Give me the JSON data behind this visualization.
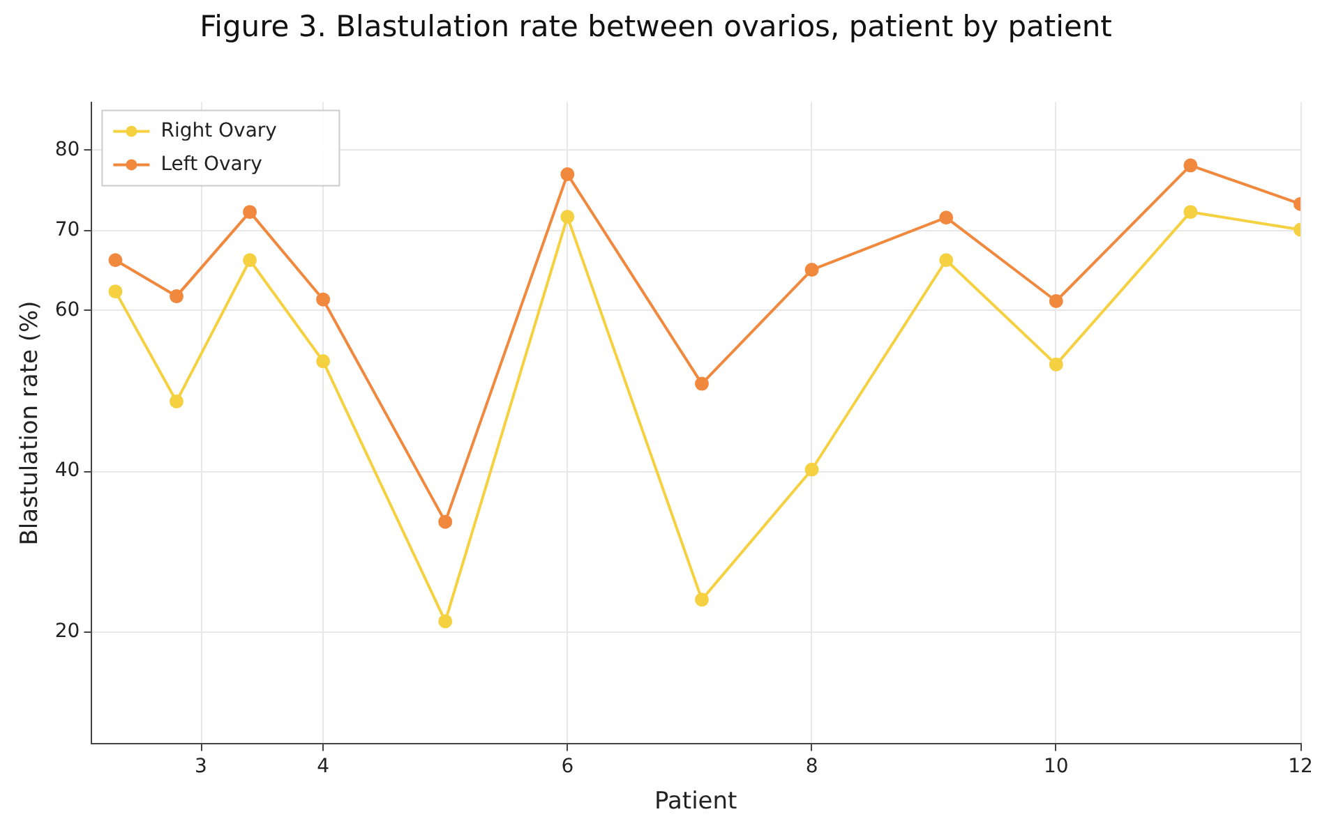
{
  "chart_data": {
    "type": "line",
    "title": "Figure 3. Blastulation rate between ovarios, patient by patient",
    "xlabel": "Patient",
    "ylabel": "Blastulation rate (%)",
    "x": [
      2.3,
      2.8,
      3.4,
      4,
      5,
      6,
      7.1,
      8,
      9.1,
      10,
      11.1,
      12
    ],
    "series": [
      {
        "name": "Right Ovary",
        "color": "#f5d142",
        "values": [
          62.4,
          48.7,
          66.3,
          53.7,
          21.3,
          71.7,
          24,
          40.2,
          66.3,
          53.3,
          72.3,
          70.1
        ]
      },
      {
        "name": "Left Ovary",
        "color": "#f0883e",
        "values": [
          66.3,
          61.8,
          72.3,
          61.4,
          33.7,
          77,
          50.9,
          65.1,
          71.6,
          61.2,
          78.1,
          73.3
        ]
      }
    ],
    "xlim": [
      2.1,
      12
    ],
    "xticks": [
      3,
      4,
      6,
      8,
      10,
      12
    ],
    "ylim": [
      6,
      86
    ],
    "yticks": [
      20,
      40,
      60,
      70,
      80
    ],
    "grid": true,
    "legend": "top left",
    "marker": "circle",
    "line_style": "solid"
  }
}
